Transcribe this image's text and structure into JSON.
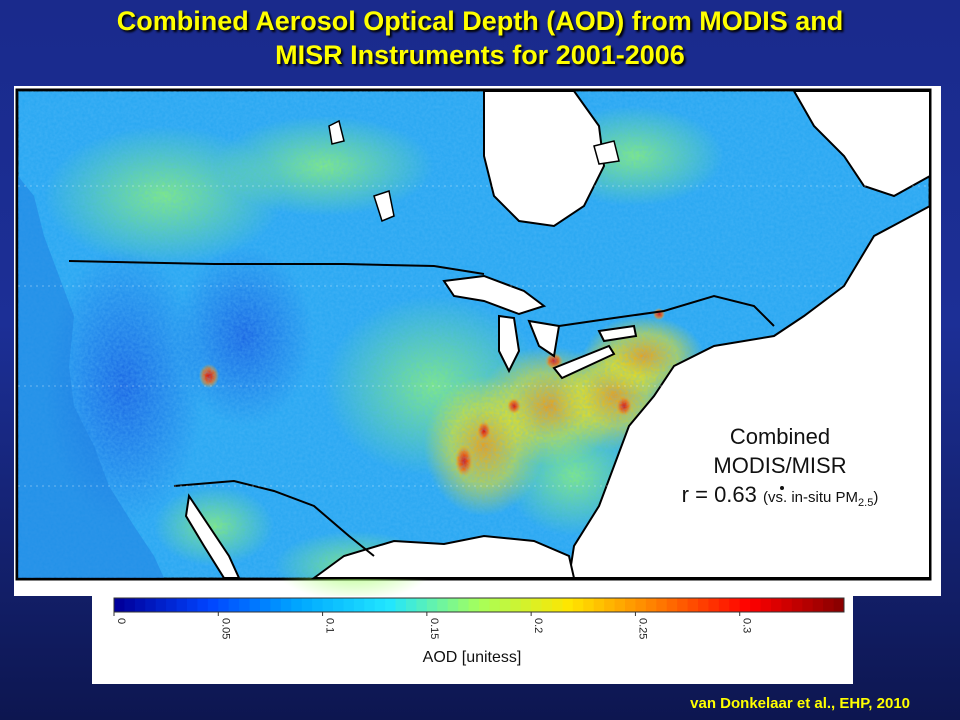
{
  "title": {
    "line1": "Combined Aerosol Optical Depth (AOD) from MODIS and",
    "line2": "MISR Instruments for 2001-2006"
  },
  "stats": {
    "line1": "Combined",
    "line2": "MODIS/MISR",
    "r_text": "r = 0.63",
    "vs_text": "(vs. in-situ PM",
    "pm_sub": "2.5",
    "close_paren": ")"
  },
  "colorbar": {
    "label": "AOD [unitess]",
    "ticks": [
      "0",
      "0.05",
      "0.1",
      "0.15",
      "0.2",
      "0.25",
      "0.3"
    ],
    "tick_values": [
      0,
      0.05,
      0.1,
      0.15,
      0.2,
      0.25,
      0.3
    ],
    "min": 0,
    "max": 0.35,
    "colors": [
      "#00009c",
      "#0044ff",
      "#00a8ff",
      "#21e6ff",
      "#a6ff5a",
      "#ffe600",
      "#ff7a00",
      "#ff0000",
      "#8c0000"
    ]
  },
  "credit": "van Donkelaar et al., EHP, 2010",
  "colors": {
    "title": "#ffff00",
    "land_base": "#2aa8f2",
    "water": "#ffffff",
    "border": "#000000"
  }
}
